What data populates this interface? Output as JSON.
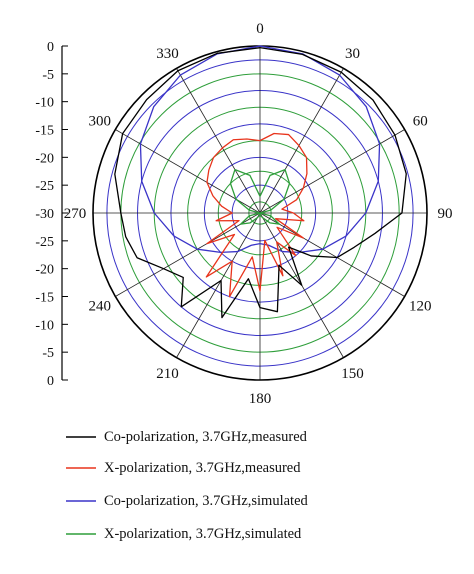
{
  "chart_data": {
    "type": "line",
    "polar": true,
    "angle_unit": "degrees",
    "angle_ticks": [
      0,
      30,
      60,
      90,
      120,
      150,
      180,
      210,
      240,
      270,
      300,
      330
    ],
    "radial_axis_labels": [
      "0",
      "-5",
      "-10",
      "-15",
      "-20",
      "-25",
      "-30",
      "-25",
      "-20",
      "-15",
      "-10",
      "-5",
      "0"
    ],
    "radial_range": [
      -30,
      0
    ],
    "grid": true,
    "legend_position": "bottom",
    "series": [
      {
        "name": "Co-polarization, 3.7GHz,measured",
        "color": "#000000",
        "theta": [
          0,
          15,
          30,
          45,
          60,
          75,
          90,
          100,
          110,
          120,
          130,
          140,
          150,
          160,
          170,
          180,
          190,
          200,
          210,
          220,
          230,
          240,
          250,
          260,
          270,
          285,
          300,
          315,
          330,
          345,
          360
        ],
        "r_db": [
          -0.3,
          -0.5,
          -0.8,
          -1.3,
          -2.0,
          -2.8,
          -4.5,
          -9,
          -12,
          -14,
          -18,
          -22,
          -15,
          -20,
          -12,
          -13,
          -18,
          -10,
          -16,
          -8,
          -12,
          -10,
          -6.5,
          -5.5,
          -5.0,
          -3.0,
          -1.5,
          -1.2,
          -0.5,
          -0.3,
          -0.3
        ]
      },
      {
        "name": "X-polarization, 3.7GHz,measured",
        "color": "#e8341c",
        "theta": [
          0,
          10,
          20,
          30,
          40,
          50,
          60,
          70,
          80,
          90,
          100,
          110,
          120,
          130,
          140,
          150,
          160,
          170,
          180,
          190,
          200,
          210,
          220,
          230,
          240,
          250,
          260,
          270,
          280,
          290,
          300,
          310,
          320,
          330,
          340,
          350,
          360
        ],
        "r_db": [
          -17,
          -15.5,
          -15,
          -16,
          -17,
          -19,
          -21,
          -23,
          -26,
          -24,
          -22,
          -27,
          -21,
          -26,
          -20,
          -24,
          -18,
          -25,
          -16,
          -22,
          -14,
          -20,
          -15,
          -24,
          -19,
          -26,
          -22,
          -25,
          -23,
          -21,
          -19,
          -18,
          -17,
          -16.5,
          -16,
          -16.5,
          -17
        ]
      },
      {
        "name": "Co-polarization, 3.7GHz,simulated",
        "color": "#3a34c8",
        "theta": [
          0,
          15,
          30,
          45,
          60,
          75,
          90,
          105,
          120,
          135,
          150,
          165,
          180,
          195,
          210,
          225,
          240,
          255,
          270,
          285,
          300,
          315,
          330,
          345,
          360
        ],
        "r_db": [
          0,
          -0.4,
          -1.4,
          -3.0,
          -5.2,
          -8.0,
          -11,
          -14,
          -17,
          -20,
          -22,
          -24,
          -24.5,
          -24,
          -22,
          -20,
          -17,
          -14,
          -11,
          -8.0,
          -5.2,
          -3.0,
          -1.4,
          -0.4,
          0
        ]
      },
      {
        "name": "X-polarization, 3.7GHz,simulated",
        "color": "#2e9e3a",
        "theta": [
          0,
          15,
          30,
          45,
          60,
          75,
          90,
          105,
          120,
          135,
          150,
          165,
          180,
          195,
          210,
          225,
          240,
          255,
          270,
          285,
          300,
          315,
          330,
          345,
          360
        ],
        "r_db": [
          -27,
          -23,
          -21,
          -22.5,
          -25,
          -28,
          -30,
          -28,
          -26,
          -27.5,
          -29,
          -29.5,
          -30,
          -29.5,
          -29,
          -27.5,
          -26,
          -28,
          -30,
          -28,
          -25,
          -22.5,
          -21,
          -23,
          -27
        ]
      }
    ]
  }
}
